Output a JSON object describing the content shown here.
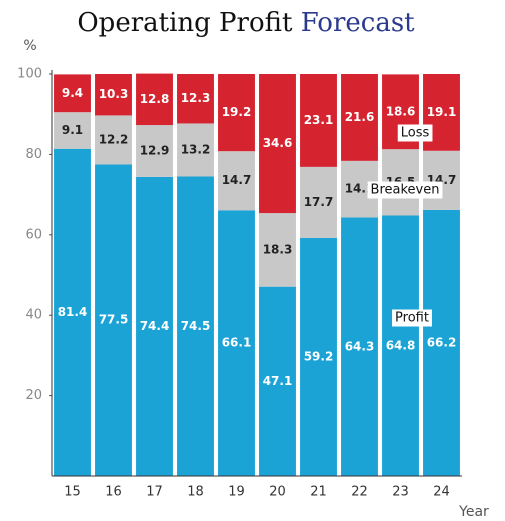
{
  "chart_data": {
    "type": "stacked_bar",
    "title_parts": [
      "Operating Profit",
      "Forecast"
    ],
    "title_colors": [
      "#111111",
      "#2b3a8c"
    ],
    "y_label": "%",
    "x_label": "Year",
    "categories": [
      "15",
      "16",
      "17",
      "18",
      "19",
      "20",
      "21",
      "22",
      "23",
      "24"
    ],
    "series": [
      {
        "name": "Profit",
        "color": "#1ba3d6",
        "label_color": "#ffffff",
        "values": [
          81.4,
          77.5,
          74.4,
          74.5,
          66.1,
          47.1,
          59.2,
          64.3,
          64.8,
          66.2
        ]
      },
      {
        "name": "Breakeven",
        "color": "#c8c8c8",
        "label_color": "#222222",
        "values": [
          9.1,
          12.2,
          12.9,
          13.2,
          14.7,
          18.3,
          17.7,
          14.1,
          16.5,
          14.7
        ]
      },
      {
        "name": "Loss",
        "color": "#d5232f",
        "label_color": "#ffffff",
        "values": [
          9.4,
          10.3,
          12.8,
          12.3,
          19.2,
          34.6,
          23.1,
          21.6,
          18.6,
          19.1
        ]
      }
    ],
    "ylim": [
      0,
      100
    ],
    "yticks": [
      20,
      40,
      60,
      80,
      100
    ]
  }
}
